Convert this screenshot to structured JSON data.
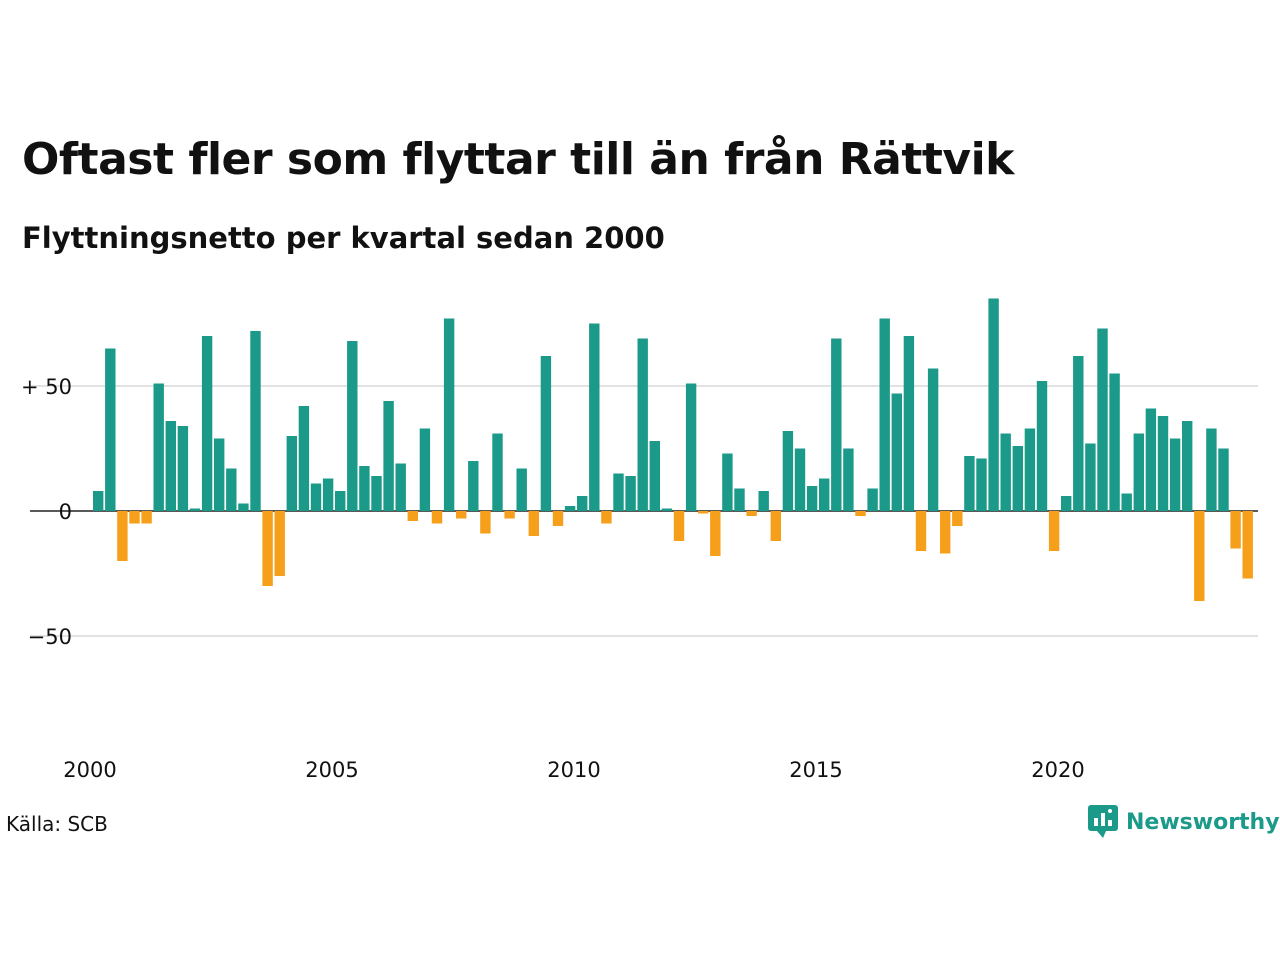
{
  "title": "Oftast fler som flyttar till än från Rättvik",
  "subtitle": "Flyttningsnetto per kvartal sedan 2000",
  "source": "Källa: SCB",
  "logo": {
    "text": "Newsworthy",
    "icon": "newsworthy-logo-icon"
  },
  "colors": {
    "positive": "#1b9a8a",
    "negative": "#f59f1a",
    "grid": "#e2e2e2",
    "text": "#111111"
  },
  "chart_data": {
    "type": "bar",
    "title": "Oftast fler som flyttar till än från Rättvik",
    "subtitle": "Flyttningsnetto per kvartal sedan 2000",
    "xlabel": "",
    "ylabel": "",
    "x_start": "2000",
    "period": "quarter",
    "x_ticks": [
      "2000",
      "2005",
      "2010",
      "2015",
      "2020"
    ],
    "y_ticks": [
      {
        "value": 50,
        "label": "+ 50"
      },
      {
        "value": 0,
        "label": "0"
      },
      {
        "value": -50,
        "label": "−50"
      }
    ],
    "ylim": [
      -80,
      90
    ],
    "grid": true,
    "values": [
      8,
      65,
      -20,
      -5,
      -5,
      51,
      36,
      34,
      1,
      70,
      29,
      17,
      3,
      72,
      -30,
      -26,
      30,
      42,
      11,
      13,
      8,
      68,
      18,
      14,
      44,
      19,
      -4,
      33,
      -5,
      77,
      -3,
      20,
      -9,
      31,
      -3,
      17,
      -10,
      62,
      -6,
      2,
      6,
      75,
      -5,
      15,
      14,
      69,
      28,
      1,
      -12,
      51,
      -1,
      -18,
      23,
      9,
      -2,
      8,
      -12,
      32,
      25,
      10,
      13,
      69,
      25,
      -2,
      9,
      77,
      47,
      70,
      -16,
      57,
      -17,
      -6,
      22,
      21,
      85,
      31,
      26,
      33,
      52,
      -16,
      6,
      62,
      27,
      73,
      55,
      7,
      31,
      41,
      38,
      29,
      36,
      -36,
      33,
      25,
      -15,
      -27
    ]
  }
}
